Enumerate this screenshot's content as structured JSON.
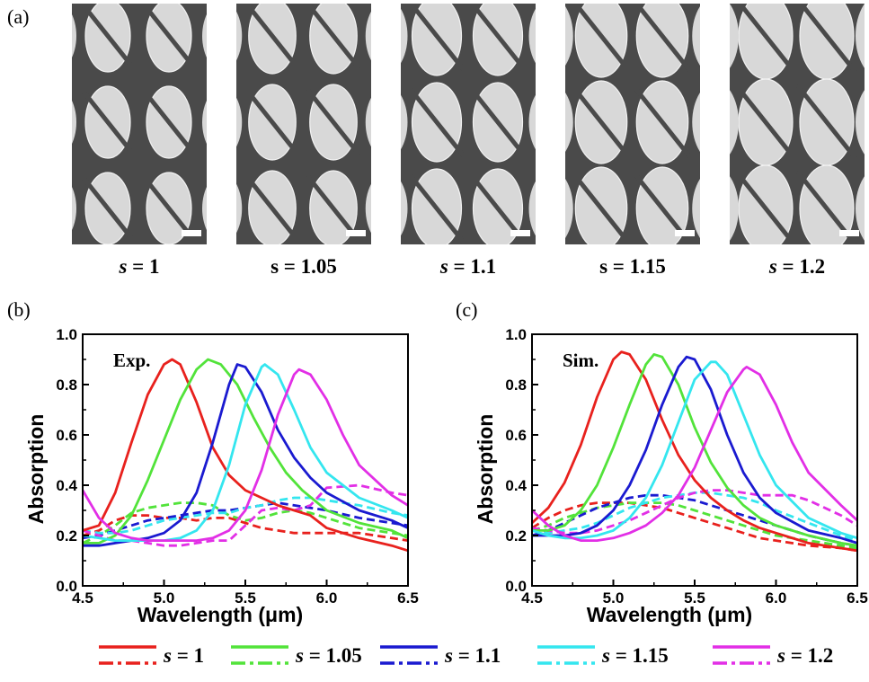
{
  "panel_labels": {
    "a": "(a)",
    "b": "(b)",
    "c": "(c)"
  },
  "sem_labels": [
    {
      "italic": "s",
      "rest": " = 1"
    },
    {
      "italic": "",
      "rest": "s = 1.05"
    },
    {
      "italic": "s",
      "rest": " = 1.1"
    },
    {
      "italic": "",
      "rest": "s = 1.15"
    },
    {
      "italic": "s",
      "rest": " = 1.2"
    }
  ],
  "sem_scales": [
    1,
    1.05,
    1.1,
    1.15,
    1.2
  ],
  "colors": {
    "s=1": "#e8211d",
    "s=1.05": "#52e33a",
    "s=1.1": "#1a1ad0",
    "s=1.15": "#34e6ef",
    "s=1.2": "#e22fe6",
    "sem_background": "#4a4a4a",
    "sem_particle": "#d8d8d8"
  },
  "legend": [
    {
      "italic": "s",
      "rest": " = 1",
      "color": "#e8211d"
    },
    {
      "italic": "s",
      "rest": " = 1.05",
      "color": "#52e33a"
    },
    {
      "italic": "s",
      "rest": " = 1.1",
      "color": "#1a1ad0"
    },
    {
      "italic": "s",
      "rest": " = 1.15",
      "color": "#34e6ef"
    },
    {
      "italic": "s",
      "rest": " = 1.2",
      "color": "#e22fe6"
    }
  ],
  "chart_data": [
    {
      "type": "line",
      "inset_label": "Exp.",
      "xlabel": "Wavelength (μm)",
      "ylabel": "Absorption",
      "xlim": [
        4.5,
        6.5
      ],
      "ylim": [
        0.0,
        1.0
      ],
      "xticks": [
        "4.5",
        "5.0",
        "5.5",
        "6.0",
        "6.5"
      ],
      "yticks": [
        "0.0",
        "0.2",
        "0.4",
        "0.6",
        "0.8",
        "1.0"
      ],
      "series": [
        {
          "name": "s = 1",
          "style": "solid",
          "color": "#e8211d",
          "x": [
            4.5,
            4.6,
            4.7,
            4.8,
            4.9,
            5.0,
            5.05,
            5.1,
            5.2,
            5.3,
            5.4,
            5.5,
            5.6,
            5.7,
            5.8,
            5.9,
            6.0,
            6.2,
            6.4,
            6.5
          ],
          "y": [
            0.22,
            0.24,
            0.37,
            0.57,
            0.76,
            0.88,
            0.9,
            0.88,
            0.73,
            0.55,
            0.44,
            0.38,
            0.35,
            0.32,
            0.3,
            0.28,
            0.23,
            0.19,
            0.16,
            0.14
          ]
        },
        {
          "name": "s = 1",
          "style": "dashed",
          "color": "#e8211d",
          "x": [
            4.5,
            4.6,
            4.7,
            4.8,
            4.9,
            5.0,
            5.1,
            5.2,
            5.3,
            5.4,
            5.5,
            5.6,
            5.7,
            5.8,
            5.9,
            6.0,
            6.2,
            6.4,
            6.5
          ],
          "y": [
            0.2,
            0.22,
            0.26,
            0.28,
            0.28,
            0.27,
            0.27,
            0.26,
            0.27,
            0.27,
            0.25,
            0.23,
            0.22,
            0.21,
            0.21,
            0.21,
            0.21,
            0.19,
            0.18
          ]
        },
        {
          "name": "s = 1.05",
          "style": "solid",
          "color": "#52e33a",
          "x": [
            4.5,
            4.6,
            4.7,
            4.8,
            4.9,
            5.0,
            5.1,
            5.2,
            5.27,
            5.35,
            5.45,
            5.55,
            5.65,
            5.75,
            5.85,
            6.0,
            6.2,
            6.4,
            6.5
          ],
          "y": [
            0.17,
            0.17,
            0.2,
            0.28,
            0.42,
            0.58,
            0.74,
            0.86,
            0.9,
            0.88,
            0.8,
            0.67,
            0.55,
            0.45,
            0.38,
            0.3,
            0.25,
            0.22,
            0.19
          ]
        },
        {
          "name": "s = 1.05",
          "style": "dashed",
          "color": "#52e33a",
          "x": [
            4.5,
            4.6,
            4.7,
            4.8,
            4.9,
            5.0,
            5.1,
            5.2,
            5.3,
            5.4,
            5.5,
            5.6,
            5.7,
            5.8,
            5.9,
            6.0,
            6.2,
            6.4,
            6.5
          ],
          "y": [
            0.17,
            0.2,
            0.24,
            0.29,
            0.31,
            0.32,
            0.33,
            0.33,
            0.32,
            0.28,
            0.26,
            0.27,
            0.29,
            0.3,
            0.29,
            0.27,
            0.23,
            0.21,
            0.2
          ]
        },
        {
          "name": "s = 1.1",
          "style": "solid",
          "color": "#1a1ad0",
          "x": [
            4.5,
            4.6,
            4.7,
            4.8,
            4.9,
            5.0,
            5.1,
            5.2,
            5.3,
            5.4,
            5.45,
            5.5,
            5.6,
            5.7,
            5.8,
            5.9,
            6.0,
            6.2,
            6.4,
            6.5
          ],
          "y": [
            0.16,
            0.16,
            0.17,
            0.18,
            0.19,
            0.21,
            0.26,
            0.37,
            0.57,
            0.8,
            0.88,
            0.87,
            0.77,
            0.62,
            0.51,
            0.43,
            0.37,
            0.3,
            0.26,
            0.23
          ]
        },
        {
          "name": "s = 1.1",
          "style": "dashed",
          "color": "#1a1ad0",
          "x": [
            4.5,
            4.6,
            4.7,
            4.8,
            4.9,
            5.0,
            5.1,
            5.2,
            5.3,
            5.4,
            5.5,
            5.6,
            5.7,
            5.8,
            5.9,
            6.0,
            6.2,
            6.4,
            6.5
          ],
          "y": [
            0.19,
            0.2,
            0.22,
            0.24,
            0.26,
            0.27,
            0.28,
            0.29,
            0.3,
            0.3,
            0.31,
            0.32,
            0.33,
            0.32,
            0.31,
            0.3,
            0.27,
            0.25,
            0.24
          ]
        },
        {
          "name": "s = 1.15",
          "style": "solid",
          "color": "#34e6ef",
          "x": [
            4.5,
            4.6,
            4.7,
            4.8,
            4.9,
            5.0,
            5.1,
            5.2,
            5.3,
            5.4,
            5.5,
            5.6,
            5.62,
            5.7,
            5.8,
            5.9,
            6.0,
            6.2,
            6.4,
            6.5
          ],
          "y": [
            0.2,
            0.19,
            0.18,
            0.18,
            0.18,
            0.18,
            0.19,
            0.22,
            0.3,
            0.48,
            0.72,
            0.87,
            0.88,
            0.84,
            0.7,
            0.55,
            0.45,
            0.35,
            0.3,
            0.27
          ]
        },
        {
          "name": "s = 1.15",
          "style": "dashed",
          "color": "#34e6ef",
          "x": [
            4.5,
            4.6,
            4.7,
            4.8,
            4.9,
            5.0,
            5.1,
            5.2,
            5.3,
            5.4,
            5.5,
            5.6,
            5.7,
            5.8,
            5.9,
            6.0,
            6.2,
            6.4,
            6.5
          ],
          "y": [
            0.22,
            0.21,
            0.21,
            0.22,
            0.24,
            0.26,
            0.27,
            0.28,
            0.29,
            0.29,
            0.31,
            0.32,
            0.34,
            0.35,
            0.35,
            0.34,
            0.32,
            0.29,
            0.28
          ]
        },
        {
          "name": "s = 1.2",
          "style": "solid",
          "color": "#e22fe6",
          "x": [
            4.5,
            4.6,
            4.7,
            4.8,
            4.9,
            5.0,
            5.1,
            5.2,
            5.3,
            5.4,
            5.5,
            5.6,
            5.7,
            5.8,
            5.83,
            5.9,
            6.0,
            6.1,
            6.2,
            6.4,
            6.5
          ],
          "y": [
            0.38,
            0.27,
            0.21,
            0.19,
            0.18,
            0.18,
            0.18,
            0.18,
            0.19,
            0.22,
            0.3,
            0.46,
            0.68,
            0.84,
            0.86,
            0.84,
            0.74,
            0.6,
            0.48,
            0.36,
            0.32
          ]
        },
        {
          "name": "s = 1.2",
          "style": "dashed",
          "color": "#e22fe6",
          "x": [
            4.5,
            4.6,
            4.7,
            4.8,
            4.9,
            5.0,
            5.1,
            5.2,
            5.3,
            5.4,
            5.5,
            5.6,
            5.7,
            5.8,
            5.9,
            6.0,
            6.2,
            6.4,
            6.5
          ],
          "y": [
            0.22,
            0.2,
            0.18,
            0.18,
            0.17,
            0.16,
            0.16,
            0.17,
            0.18,
            0.18,
            0.24,
            0.3,
            0.31,
            0.3,
            0.32,
            0.39,
            0.4,
            0.37,
            0.36
          ]
        }
      ]
    },
    {
      "type": "line",
      "inset_label": "Sim.",
      "xlabel": "Wavelength (μm)",
      "ylabel": "Absorption",
      "xlim": [
        4.5,
        6.5
      ],
      "ylim": [
        0.0,
        1.0
      ],
      "xticks": [
        "4.5",
        "5.0",
        "5.5",
        "6.0",
        "6.5"
      ],
      "yticks": [
        "0.0",
        "0.2",
        "0.4",
        "0.6",
        "0.8",
        "1.0"
      ],
      "series": [
        {
          "name": "s = 1",
          "style": "solid",
          "color": "#e8211d",
          "x": [
            4.5,
            4.6,
            4.7,
            4.8,
            4.9,
            5.0,
            5.05,
            5.1,
            5.2,
            5.3,
            5.4,
            5.5,
            5.6,
            5.7,
            5.8,
            5.9,
            6.0,
            6.2,
            6.4,
            6.5
          ],
          "y": [
            0.25,
            0.31,
            0.41,
            0.56,
            0.75,
            0.9,
            0.93,
            0.92,
            0.82,
            0.66,
            0.52,
            0.42,
            0.35,
            0.3,
            0.26,
            0.23,
            0.21,
            0.17,
            0.15,
            0.14
          ]
        },
        {
          "name": "s = 1",
          "style": "dashed",
          "color": "#e8211d",
          "x": [
            4.5,
            4.6,
            4.7,
            4.8,
            4.9,
            5.0,
            5.1,
            5.2,
            5.3,
            5.4,
            5.5,
            5.6,
            5.7,
            5.8,
            5.9,
            6.0,
            6.2,
            6.4,
            6.5
          ],
          "y": [
            0.23,
            0.27,
            0.3,
            0.32,
            0.33,
            0.33,
            0.33,
            0.32,
            0.31,
            0.29,
            0.27,
            0.25,
            0.23,
            0.21,
            0.19,
            0.18,
            0.16,
            0.15,
            0.14
          ]
        },
        {
          "name": "s = 1.05",
          "style": "solid",
          "color": "#52e33a",
          "x": [
            4.5,
            4.6,
            4.7,
            4.8,
            4.9,
            5.0,
            5.1,
            5.2,
            5.25,
            5.3,
            5.4,
            5.5,
            5.6,
            5.7,
            5.8,
            5.9,
            6.0,
            6.2,
            6.4,
            6.5
          ],
          "y": [
            0.22,
            0.22,
            0.24,
            0.3,
            0.4,
            0.55,
            0.72,
            0.88,
            0.92,
            0.91,
            0.8,
            0.63,
            0.49,
            0.39,
            0.32,
            0.27,
            0.24,
            0.2,
            0.17,
            0.16
          ]
        },
        {
          "name": "s = 1.05",
          "style": "dashed",
          "color": "#52e33a",
          "x": [
            4.5,
            4.6,
            4.7,
            4.8,
            4.9,
            5.0,
            5.1,
            5.2,
            5.3,
            5.4,
            5.5,
            5.6,
            5.7,
            5.8,
            5.9,
            6.0,
            6.2,
            6.4,
            6.5
          ],
          "y": [
            0.22,
            0.24,
            0.27,
            0.29,
            0.31,
            0.32,
            0.33,
            0.33,
            0.33,
            0.32,
            0.3,
            0.28,
            0.26,
            0.24,
            0.22,
            0.2,
            0.18,
            0.16,
            0.15
          ]
        },
        {
          "name": "s = 1.1",
          "style": "solid",
          "color": "#1a1ad0",
          "x": [
            4.5,
            4.6,
            4.7,
            4.8,
            4.9,
            5.0,
            5.1,
            5.2,
            5.3,
            5.4,
            5.45,
            5.5,
            5.6,
            5.7,
            5.8,
            5.9,
            6.0,
            6.2,
            6.4,
            6.5
          ],
          "y": [
            0.2,
            0.2,
            0.2,
            0.21,
            0.24,
            0.3,
            0.4,
            0.54,
            0.72,
            0.87,
            0.91,
            0.9,
            0.78,
            0.6,
            0.45,
            0.35,
            0.29,
            0.22,
            0.19,
            0.17
          ]
        },
        {
          "name": "s = 1.1",
          "style": "dashed",
          "color": "#1a1ad0",
          "x": [
            4.5,
            4.6,
            4.7,
            4.8,
            4.9,
            5.0,
            5.1,
            5.2,
            5.3,
            5.4,
            5.5,
            5.6,
            5.7,
            5.8,
            5.9,
            6.0,
            6.2,
            6.4,
            6.5
          ],
          "y": [
            0.2,
            0.22,
            0.25,
            0.28,
            0.31,
            0.33,
            0.35,
            0.36,
            0.36,
            0.35,
            0.34,
            0.32,
            0.3,
            0.28,
            0.26,
            0.24,
            0.2,
            0.17,
            0.16
          ]
        },
        {
          "name": "s = 1.15",
          "style": "solid",
          "color": "#34e6ef",
          "x": [
            4.5,
            4.6,
            4.7,
            4.8,
            4.9,
            5.0,
            5.1,
            5.2,
            5.3,
            5.4,
            5.5,
            5.6,
            5.63,
            5.7,
            5.8,
            5.9,
            6.0,
            6.2,
            6.4,
            6.5
          ],
          "y": [
            0.22,
            0.2,
            0.19,
            0.19,
            0.2,
            0.22,
            0.27,
            0.35,
            0.48,
            0.65,
            0.82,
            0.89,
            0.89,
            0.84,
            0.68,
            0.52,
            0.4,
            0.27,
            0.21,
            0.19
          ]
        },
        {
          "name": "s = 1.15",
          "style": "dashed",
          "color": "#34e6ef",
          "x": [
            4.5,
            4.6,
            4.7,
            4.8,
            4.9,
            5.0,
            5.1,
            5.2,
            5.3,
            5.4,
            5.5,
            5.6,
            5.7,
            5.8,
            5.9,
            6.0,
            6.2,
            6.4,
            6.5
          ],
          "y": [
            0.22,
            0.21,
            0.22,
            0.23,
            0.25,
            0.28,
            0.31,
            0.33,
            0.35,
            0.36,
            0.37,
            0.37,
            0.36,
            0.35,
            0.33,
            0.3,
            0.25,
            0.2,
            0.18
          ]
        },
        {
          "name": "s = 1.2",
          "style": "solid",
          "color": "#e22fe6",
          "x": [
            4.5,
            4.6,
            4.7,
            4.8,
            4.9,
            5.0,
            5.1,
            5.2,
            5.3,
            5.4,
            5.5,
            5.6,
            5.7,
            5.8,
            5.82,
            5.9,
            6.0,
            6.1,
            6.2,
            6.4,
            6.5
          ],
          "y": [
            0.3,
            0.24,
            0.2,
            0.18,
            0.18,
            0.19,
            0.21,
            0.24,
            0.29,
            0.36,
            0.47,
            0.62,
            0.77,
            0.86,
            0.87,
            0.84,
            0.72,
            0.57,
            0.45,
            0.32,
            0.26
          ]
        },
        {
          "name": "s = 1.2",
          "style": "dashed",
          "color": "#e22fe6",
          "x": [
            4.5,
            4.6,
            4.7,
            4.8,
            4.9,
            5.0,
            5.1,
            5.2,
            5.3,
            5.4,
            5.5,
            5.6,
            5.7,
            5.8,
            5.9,
            6.0,
            6.1,
            6.2,
            6.4,
            6.5
          ],
          "y": [
            0.23,
            0.22,
            0.21,
            0.21,
            0.22,
            0.24,
            0.26,
            0.29,
            0.32,
            0.35,
            0.37,
            0.38,
            0.38,
            0.37,
            0.36,
            0.36,
            0.36,
            0.34,
            0.28,
            0.24
          ]
        }
      ]
    }
  ]
}
